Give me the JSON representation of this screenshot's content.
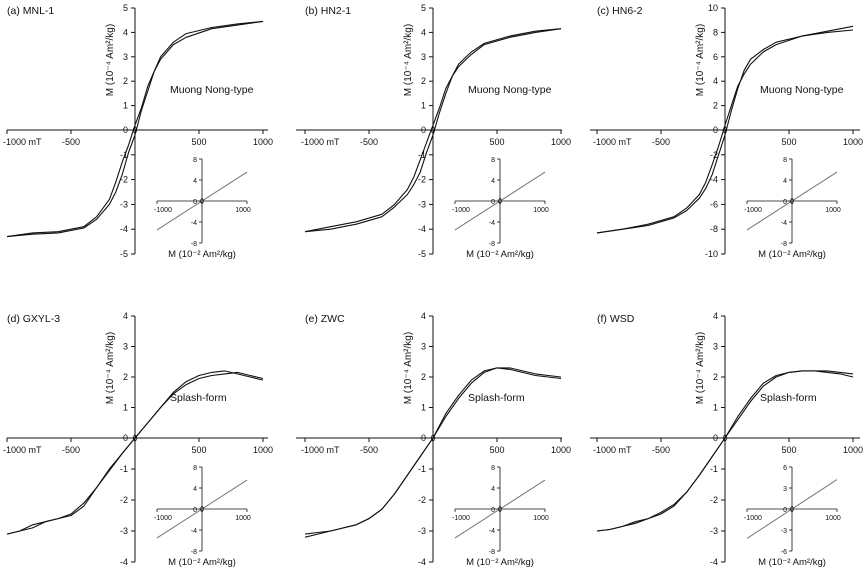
{
  "figure": {
    "panels": [
      {
        "label": "(a) MNL-1",
        "annotation": "Muong Nong-type",
        "ylabel": "M (10⁻⁴ Am²/kg)"
      },
      {
        "label": "(b) HN2-1",
        "annotation": "Muong Nong-type",
        "ylabel": "M (10⁻⁴ Am²/kg)"
      },
      {
        "label": "(c) HN6-2",
        "annotation": "Muong Nong-type",
        "ylabel": "M (10⁻⁴ Am²/kg)"
      },
      {
        "label": "(d) GXYL-3",
        "annotation": "Splash-form",
        "ylabel": "M (10⁻⁴ Am²/kg)"
      },
      {
        "label": "(e) ZWC",
        "annotation": "Splash-form",
        "ylabel": "M (10⁻⁴ Am²/kg)"
      },
      {
        "label": "(f) WSD",
        "annotation": "Splash-form",
        "ylabel": "M (10⁻⁴ Am²/kg)"
      }
    ],
    "inset_ylabel": "M (10⁻² Am²/kg)",
    "x_unit_label": "-1000 mT"
  },
  "chart_data": [
    {
      "type": "line",
      "title": "(a) MNL-1",
      "annotation": "Muong Nong-type",
      "xlabel": "mT",
      "ylabel": "M (10⁻⁴ Am²/kg)",
      "xlim": [
        -1000,
        1000
      ],
      "ylim": [
        -5,
        5
      ],
      "xticks": [
        -1000,
        -500,
        0,
        500,
        1000
      ],
      "yticks": [
        -5,
        -4,
        -3,
        -2,
        -1,
        0,
        1,
        2,
        3,
        4,
        5
      ],
      "series": [
        {
          "x": [
            -1000,
            -800,
            -600,
            -400,
            -300,
            -200,
            -150,
            -100,
            -50,
            0,
            50,
            100,
            150,
            200,
            300,
            400,
            600,
            800,
            1000
          ],
          "y": [
            -4.3,
            -4.15,
            -4.1,
            -3.9,
            -3.5,
            -2.8,
            -2.1,
            -1.3,
            -0.6,
            0.2,
            0.9,
            1.8,
            2.4,
            2.9,
            3.5,
            3.8,
            4.15,
            4.3,
            4.45
          ]
        },
        {
          "x": [
            1000,
            800,
            600,
            400,
            300,
            200,
            150,
            100,
            50,
            0,
            -50,
            -100,
            -150,
            -200,
            -300,
            -400,
            -600,
            -800,
            -1000
          ],
          "y": [
            4.45,
            4.35,
            4.2,
            3.95,
            3.6,
            3.0,
            2.4,
            1.6,
            0.8,
            -0.2,
            -0.9,
            -1.8,
            -2.5,
            -3.0,
            -3.6,
            -3.95,
            -4.15,
            -4.2,
            -4.3
          ]
        }
      ],
      "inset": {
        "xlim": [
          -1000,
          1000
        ],
        "ylim": [
          -8,
          8
        ],
        "xticks": [
          -1000,
          0,
          1000
        ],
        "yticks": [
          -8,
          -4,
          0,
          4,
          8
        ],
        "series": [
          {
            "x": [
              -1000,
              1000
            ],
            "y": [
              -5.5,
              5.5
            ]
          }
        ]
      }
    },
    {
      "type": "line",
      "title": "(b) HN2-1",
      "annotation": "Muong Nong-type",
      "xlabel": "mT",
      "ylabel": "M (10⁻⁴ Am²/kg)",
      "xlim": [
        -1000,
        1000
      ],
      "ylim": [
        -5,
        5
      ],
      "xticks": [
        -1000,
        -500,
        0,
        500,
        1000
      ],
      "yticks": [
        -5,
        -4,
        -3,
        -2,
        -1,
        0,
        1,
        2,
        3,
        4,
        5
      ],
      "series": [
        {
          "x": [
            -1000,
            -800,
            -600,
            -400,
            -300,
            -200,
            -150,
            -100,
            -50,
            0,
            50,
            100,
            150,
            200,
            300,
            400,
            600,
            800,
            1000
          ],
          "y": [
            -4.1,
            -3.9,
            -3.7,
            -3.4,
            -3.0,
            -2.4,
            -1.9,
            -1.2,
            -0.5,
            0.2,
            0.9,
            1.7,
            2.2,
            2.6,
            3.1,
            3.5,
            3.8,
            4.0,
            4.15
          ]
        },
        {
          "x": [
            1000,
            800,
            600,
            400,
            300,
            200,
            150,
            100,
            50,
            0,
            -50,
            -100,
            -150,
            -200,
            -300,
            -400,
            -600,
            -800,
            -1000
          ],
          "y": [
            4.15,
            4.05,
            3.85,
            3.55,
            3.2,
            2.7,
            2.2,
            1.5,
            0.7,
            -0.2,
            -0.9,
            -1.7,
            -2.2,
            -2.6,
            -3.1,
            -3.5,
            -3.8,
            -4.0,
            -4.1
          ]
        }
      ],
      "inset": {
        "xlim": [
          -1000,
          1000
        ],
        "ylim": [
          -8,
          8
        ],
        "xticks": [
          -1000,
          0,
          1000
        ],
        "yticks": [
          -8,
          -4,
          0,
          4,
          8
        ],
        "series": [
          {
            "x": [
              -1000,
              1000
            ],
            "y": [
              -5.5,
              5.5
            ]
          }
        ]
      }
    },
    {
      "type": "line",
      "title": "(c) HN6-2",
      "annotation": "Muong Nong-type",
      "xlabel": "mT",
      "ylabel": "M (10⁻⁴ Am²/kg)",
      "xlim": [
        -1000,
        1000
      ],
      "ylim": [
        -10,
        10
      ],
      "xticks": [
        -1000,
        -500,
        0,
        500,
        1000
      ],
      "yticks": [
        -10,
        -8,
        -6,
        -4,
        -2,
        0,
        2,
        4,
        6,
        8,
        10
      ],
      "series": [
        {
          "x": [
            -1000,
            -800,
            -600,
            -400,
            -300,
            -200,
            -150,
            -100,
            -50,
            0,
            50,
            100,
            150,
            200,
            300,
            400,
            600,
            800,
            1000
          ],
          "y": [
            -8.3,
            -8.0,
            -7.6,
            -7.0,
            -6.3,
            -5.2,
            -4.2,
            -2.8,
            -1.3,
            0.4,
            2.0,
            3.6,
            4.6,
            5.4,
            6.4,
            7.0,
            7.7,
            8.1,
            8.5
          ]
        },
        {
          "x": [
            1000,
            800,
            600,
            400,
            300,
            200,
            150,
            100,
            50,
            0,
            -50,
            -100,
            -150,
            -200,
            -300,
            -400,
            -600,
            -800,
            -1000
          ],
          "y": [
            8.2,
            8.0,
            7.7,
            7.2,
            6.6,
            5.8,
            4.9,
            3.4,
            1.6,
            -0.4,
            -2.0,
            -3.6,
            -4.7,
            -5.5,
            -6.5,
            -7.1,
            -7.7,
            -8.0,
            -8.3
          ]
        }
      ],
      "inset": {
        "xlim": [
          -1000,
          1000
        ],
        "ylim": [
          -8,
          8
        ],
        "xticks": [
          -1000,
          0,
          1000
        ],
        "yticks": [
          -8,
          -4,
          0,
          4,
          8
        ],
        "series": [
          {
            "x": [
              -1000,
              1000
            ],
            "y": [
              -5.5,
              5.5
            ]
          }
        ]
      }
    },
    {
      "type": "line",
      "title": "(d) GXYL-3",
      "annotation": "Splash-form",
      "xlabel": "mT",
      "ylabel": "M (10⁻⁴ Am²/kg)",
      "xlim": [
        -1000,
        1000
      ],
      "ylim": [
        -4,
        4
      ],
      "xticks": [
        -1000,
        -500,
        0,
        500,
        1000
      ],
      "yticks": [
        -4,
        -3,
        -2,
        -1,
        0,
        1,
        2,
        3,
        4
      ],
      "series": [
        {
          "x": [
            -1000,
            -900,
            -800,
            -700,
            -600,
            -500,
            -400,
            -300,
            -200,
            -100,
            0,
            100,
            200,
            300,
            400,
            500,
            600,
            700,
            800,
            900,
            1000
          ],
          "y": [
            -3.1,
            -3.0,
            -2.8,
            -2.7,
            -2.6,
            -2.5,
            -2.2,
            -1.6,
            -1.0,
            -0.5,
            0.0,
            0.5,
            1.0,
            1.5,
            1.85,
            2.05,
            2.15,
            2.2,
            2.1,
            2.0,
            1.9
          ]
        },
        {
          "x": [
            1000,
            900,
            800,
            700,
            600,
            500,
            400,
            300,
            200,
            100,
            0,
            -100,
            -200,
            -300,
            -400,
            -500,
            -600,
            -700,
            -800,
            -900,
            -1000
          ],
          "y": [
            1.95,
            2.05,
            2.15,
            2.1,
            2.05,
            1.95,
            1.75,
            1.45,
            1.0,
            0.5,
            0.0,
            -0.5,
            -1.05,
            -1.6,
            -2.1,
            -2.45,
            -2.6,
            -2.7,
            -2.9,
            -3.0,
            -3.1
          ]
        }
      ],
      "inset": {
        "xlim": [
          -1000,
          1000
        ],
        "ylim": [
          -8,
          8
        ],
        "xticks": [
          -1000,
          0,
          1000
        ],
        "yticks": [
          -8,
          -4,
          0,
          4,
          8
        ],
        "series": [
          {
            "x": [
              -1000,
              1000
            ],
            "y": [
              -5.5,
              5.5
            ]
          }
        ]
      }
    },
    {
      "type": "line",
      "title": "(e) ZWC",
      "annotation": "Splash-form",
      "xlabel": "mT",
      "ylabel": "M (10⁻⁴ Am²/kg)",
      "xlim": [
        -1000,
        1000
      ],
      "ylim": [
        -4,
        4
      ],
      "xticks": [
        -1000,
        -500,
        0,
        500,
        1000
      ],
      "yticks": [
        -4,
        -3,
        -2,
        -1,
        0,
        1,
        2,
        3,
        4
      ],
      "series": [
        {
          "x": [
            -1000,
            -900,
            -800,
            -700,
            -600,
            -500,
            -400,
            -300,
            -200,
            -100,
            0,
            100,
            200,
            300,
            400,
            500,
            600,
            700,
            800,
            900,
            1000
          ],
          "y": [
            -3.2,
            -3.1,
            -3.0,
            -2.9,
            -2.8,
            -2.6,
            -2.3,
            -1.8,
            -1.2,
            -0.6,
            0.0,
            0.7,
            1.3,
            1.8,
            2.15,
            2.3,
            2.25,
            2.15,
            2.05,
            2.0,
            1.95
          ]
        },
        {
          "x": [
            1000,
            900,
            800,
            700,
            600,
            500,
            400,
            300,
            200,
            100,
            0,
            -100,
            -200,
            -300,
            -400,
            -500,
            -600,
            -700,
            -800,
            -900,
            -1000
          ],
          "y": [
            2.0,
            2.05,
            2.1,
            2.2,
            2.3,
            2.3,
            2.2,
            1.9,
            1.4,
            0.8,
            0.0,
            -0.6,
            -1.2,
            -1.8,
            -2.3,
            -2.6,
            -2.8,
            -2.9,
            -3.0,
            -3.05,
            -3.1
          ]
        }
      ],
      "inset": {
        "xlim": [
          -1000,
          1000
        ],
        "ylim": [
          -8,
          8
        ],
        "xticks": [
          -1000,
          0,
          1000
        ],
        "yticks": [
          -8,
          -4,
          0,
          4,
          8
        ],
        "series": [
          {
            "x": [
              -1000,
              1000
            ],
            "y": [
              -5.5,
              5.5
            ]
          }
        ]
      }
    },
    {
      "type": "line",
      "title": "(f) WSD",
      "annotation": "Splash-form",
      "xlabel": "mT",
      "ylabel": "M (10⁻⁴ Am²/kg)",
      "xlim": [
        -1000,
        1000
      ],
      "ylim": [
        -4,
        4
      ],
      "xticks": [
        -1000,
        -500,
        0,
        500,
        1000
      ],
      "yticks": [
        -4,
        -3,
        -2,
        -1,
        0,
        1,
        2,
        3,
        4
      ],
      "series": [
        {
          "x": [
            -1000,
            -900,
            -800,
            -700,
            -600,
            -500,
            -400,
            -300,
            -200,
            -100,
            0,
            100,
            200,
            300,
            400,
            500,
            600,
            700,
            800,
            900,
            1000
          ],
          "y": [
            -3.0,
            -2.95,
            -2.85,
            -2.75,
            -2.6,
            -2.45,
            -2.2,
            -1.75,
            -1.2,
            -0.6,
            0.0,
            0.6,
            1.2,
            1.7,
            2.0,
            2.15,
            2.2,
            2.2,
            2.2,
            2.15,
            2.1
          ]
        },
        {
          "x": [
            1000,
            900,
            800,
            700,
            600,
            500,
            400,
            300,
            200,
            100,
            0,
            -100,
            -200,
            -300,
            -400,
            -500,
            -600,
            -700,
            -800,
            -900,
            -1000
          ],
          "y": [
            2.0,
            2.1,
            2.15,
            2.2,
            2.2,
            2.15,
            2.05,
            1.8,
            1.3,
            0.7,
            0.0,
            -0.6,
            -1.2,
            -1.75,
            -2.15,
            -2.4,
            -2.6,
            -2.7,
            -2.85,
            -2.95,
            -3.0
          ]
        }
      ],
      "inset": {
        "xlim": [
          -1000,
          1000
        ],
        "ylim": [
          -6,
          6
        ],
        "xticks": [
          -1000,
          0,
          1000
        ],
        "yticks": [
          -6,
          -3,
          0,
          3,
          6
        ],
        "series": [
          {
            "x": [
              -1000,
              1000
            ],
            "y": [
              -4.2,
              4.2
            ]
          }
        ]
      }
    }
  ]
}
